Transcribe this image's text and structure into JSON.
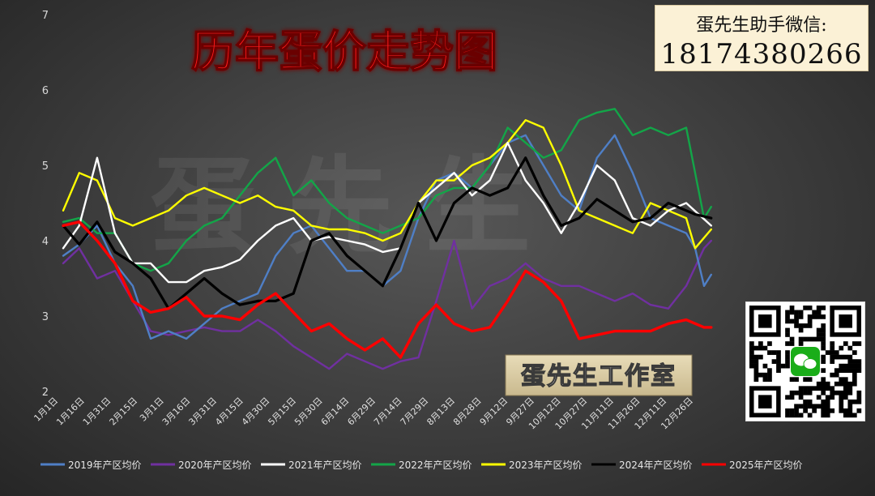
{
  "chart_data": {
    "type": "line",
    "title": "历年蛋价走势图",
    "ylim": [
      2,
      7
    ],
    "yticks": [
      2,
      3,
      4,
      5,
      6,
      7
    ],
    "xtick_labels": [
      "1月1日",
      "1月16日",
      "1月31日",
      "2月15日",
      "3月1日",
      "3月16日",
      "3月31日",
      "4月15日",
      "4月30日",
      "5月15日",
      "5月30日",
      "6月14日",
      "6月29日",
      "7月14日",
      "7月29日",
      "8月13日",
      "8月28日",
      "9月12日",
      "9月27日",
      "10月12日",
      "10月27日",
      "11月11日",
      "11月26日",
      "12月11日",
      "12月26日"
    ],
    "x_start_day": 1,
    "x_end_day": 365,
    "grid": false,
    "legend_position": "bottom",
    "series": [
      {
        "name": "2019年产区均价",
        "color": "#4f7fc6",
        "x": [
          1,
          10,
          20,
          30,
          40,
          50,
          60,
          70,
          80,
          90,
          100,
          110,
          120,
          130,
          140,
          150,
          160,
          170,
          180,
          190,
          200,
          210,
          220,
          230,
          240,
          250,
          260,
          270,
          280,
          290,
          300,
          310,
          320,
          330,
          340,
          350,
          355,
          360,
          364
        ],
        "y": [
          3.8,
          3.95,
          4.2,
          3.7,
          3.4,
          2.7,
          2.8,
          2.7,
          2.9,
          3.1,
          3.2,
          3.3,
          3.8,
          4.1,
          4.2,
          3.9,
          3.6,
          3.6,
          3.4,
          3.6,
          4.3,
          4.8,
          4.9,
          4.7,
          5.0,
          5.3,
          5.4,
          5.0,
          4.6,
          4.4,
          5.1,
          5.4,
          4.9,
          4.3,
          4.2,
          4.1,
          3.9,
          3.4,
          3.55
        ]
      },
      {
        "name": "2020年产区均价",
        "color": "#7030a0",
        "x": [
          1,
          10,
          20,
          30,
          40,
          50,
          60,
          70,
          80,
          90,
          100,
          110,
          120,
          130,
          140,
          150,
          160,
          170,
          180,
          190,
          200,
          210,
          220,
          230,
          240,
          250,
          260,
          270,
          280,
          290,
          300,
          310,
          320,
          330,
          340,
          350,
          360,
          364
        ],
        "y": [
          3.7,
          3.9,
          3.5,
          3.6,
          3.2,
          2.8,
          2.75,
          2.8,
          2.85,
          2.8,
          2.8,
          2.95,
          2.8,
          2.6,
          2.45,
          2.3,
          2.5,
          2.4,
          2.3,
          2.4,
          2.45,
          3.2,
          4.0,
          3.1,
          3.4,
          3.5,
          3.7,
          3.5,
          3.4,
          3.4,
          3.3,
          3.2,
          3.3,
          3.15,
          3.1,
          3.4,
          3.9,
          4.0
        ]
      },
      {
        "name": "2021年产区均价",
        "color": "#ffffff",
        "x": [
          1,
          10,
          20,
          25,
          30,
          40,
          50,
          60,
          70,
          80,
          90,
          100,
          110,
          120,
          130,
          140,
          150,
          160,
          170,
          180,
          190,
          200,
          210,
          220,
          230,
          240,
          250,
          260,
          270,
          280,
          290,
          300,
          310,
          320,
          330,
          340,
          350,
          364
        ],
        "y": [
          3.9,
          4.2,
          5.1,
          4.6,
          4.1,
          3.7,
          3.7,
          3.45,
          3.45,
          3.6,
          3.65,
          3.75,
          4.0,
          4.2,
          4.3,
          4.0,
          4.05,
          4.0,
          3.95,
          3.85,
          3.9,
          4.5,
          4.7,
          4.9,
          4.6,
          4.8,
          5.3,
          4.8,
          4.5,
          4.1,
          4.5,
          5.0,
          4.8,
          4.3,
          4.2,
          4.4,
          4.5,
          4.2
        ]
      },
      {
        "name": "2022年产区均价",
        "color": "#13a548",
        "x": [
          1,
          10,
          20,
          30,
          40,
          50,
          60,
          70,
          80,
          90,
          100,
          110,
          120,
          130,
          140,
          150,
          160,
          170,
          180,
          190,
          200,
          210,
          220,
          230,
          240,
          250,
          260,
          270,
          280,
          290,
          300,
          310,
          320,
          330,
          340,
          350,
          360,
          364
        ],
        "y": [
          4.25,
          4.3,
          4.1,
          4.1,
          3.7,
          3.6,
          3.7,
          4.0,
          4.2,
          4.3,
          4.6,
          4.9,
          5.1,
          4.6,
          4.8,
          4.5,
          4.3,
          4.2,
          4.1,
          4.2,
          4.3,
          4.6,
          4.7,
          4.7,
          5.0,
          5.5,
          5.3,
          5.1,
          5.2,
          5.6,
          5.7,
          5.75,
          5.4,
          5.5,
          5.4,
          5.5,
          4.3,
          4.45
        ]
      },
      {
        "name": "2023年产区均价",
        "color": "#ffff00",
        "x": [
          1,
          10,
          20,
          30,
          40,
          50,
          60,
          70,
          80,
          90,
          100,
          110,
          120,
          130,
          140,
          150,
          160,
          170,
          180,
          190,
          200,
          210,
          220,
          230,
          240,
          250,
          260,
          270,
          280,
          290,
          300,
          310,
          320,
          330,
          340,
          350,
          355,
          364
        ],
        "y": [
          4.4,
          4.9,
          4.8,
          4.3,
          4.2,
          4.3,
          4.4,
          4.6,
          4.7,
          4.6,
          4.5,
          4.6,
          4.45,
          4.4,
          4.2,
          4.15,
          4.15,
          4.1,
          4.0,
          4.1,
          4.5,
          4.8,
          4.8,
          5.0,
          5.1,
          5.3,
          5.6,
          5.5,
          5.0,
          4.4,
          4.3,
          4.2,
          4.1,
          4.5,
          4.4,
          4.3,
          3.9,
          4.15
        ]
      },
      {
        "name": "2024年产区均价",
        "color": "#000000",
        "x": [
          1,
          10,
          20,
          30,
          40,
          50,
          60,
          70,
          80,
          90,
          100,
          110,
          120,
          130,
          140,
          150,
          160,
          170,
          180,
          190,
          200,
          210,
          220,
          230,
          240,
          250,
          260,
          270,
          280,
          290,
          300,
          310,
          320,
          330,
          340,
          350,
          355,
          364
        ],
        "y": [
          4.2,
          3.95,
          4.25,
          3.85,
          3.7,
          3.5,
          3.1,
          3.3,
          3.5,
          3.3,
          3.15,
          3.2,
          3.2,
          3.3,
          4.0,
          4.1,
          3.8,
          3.6,
          3.4,
          3.9,
          4.5,
          4.0,
          4.5,
          4.7,
          4.6,
          4.7,
          5.1,
          4.6,
          4.2,
          4.3,
          4.55,
          4.4,
          4.25,
          4.3,
          4.5,
          4.4,
          4.35,
          4.3
        ]
      },
      {
        "name": "2025年产区均价",
        "color": "#ff0000",
        "x": [
          1,
          10,
          20,
          30,
          40,
          50,
          60,
          70,
          80,
          90,
          100,
          110,
          120,
          130,
          140,
          150,
          160,
          170,
          180,
          190,
          200,
          210,
          220,
          230,
          240,
          250,
          260,
          270,
          280,
          290,
          300,
          310,
          320,
          330,
          340,
          350,
          360,
          364
        ],
        "y": [
          4.2,
          4.25,
          4.0,
          3.7,
          3.2,
          3.05,
          3.1,
          3.25,
          3.0,
          3.0,
          2.95,
          3.15,
          3.3,
          3.05,
          2.8,
          2.9,
          2.7,
          2.55,
          2.7,
          2.45,
          2.9,
          3.15,
          2.9,
          2.8,
          2.85,
          3.2,
          3.6,
          3.45,
          3.2,
          2.7,
          2.75,
          2.8,
          2.8,
          2.8,
          2.9,
          2.95,
          2.85,
          2.85
        ]
      }
    ]
  },
  "contact": {
    "label": "蛋先生助手微信:",
    "number": "18174380266"
  },
  "watermark_stamp": "蛋先生工作室",
  "watermark_bg": "蛋先生"
}
